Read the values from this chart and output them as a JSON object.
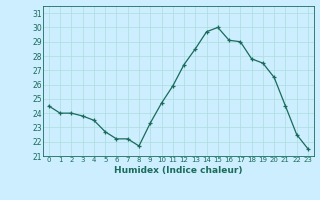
{
  "x": [
    0,
    1,
    2,
    3,
    4,
    5,
    6,
    7,
    8,
    9,
    10,
    11,
    12,
    13,
    14,
    15,
    16,
    17,
    18,
    19,
    20,
    21,
    22,
    23
  ],
  "y": [
    24.5,
    24.0,
    24.0,
    23.8,
    23.5,
    22.7,
    22.2,
    22.2,
    21.7,
    23.3,
    24.7,
    25.9,
    27.4,
    28.5,
    29.7,
    30.0,
    29.1,
    29.0,
    27.8,
    27.5,
    26.5,
    24.5,
    22.5,
    21.5
  ],
  "xlabel": "Humidex (Indice chaleur)",
  "ylim": [
    21,
    31.5
  ],
  "xlim": [
    -0.5,
    23.5
  ],
  "yticks": [
    21,
    22,
    23,
    24,
    25,
    26,
    27,
    28,
    29,
    30,
    31
  ],
  "xticks": [
    0,
    1,
    2,
    3,
    4,
    5,
    6,
    7,
    8,
    9,
    10,
    11,
    12,
    13,
    14,
    15,
    16,
    17,
    18,
    19,
    20,
    21,
    22,
    23
  ],
  "line_color": "#1a6b5a",
  "marker": "+",
  "bg_color": "#cceeff",
  "grid_color": "#aadddd"
}
